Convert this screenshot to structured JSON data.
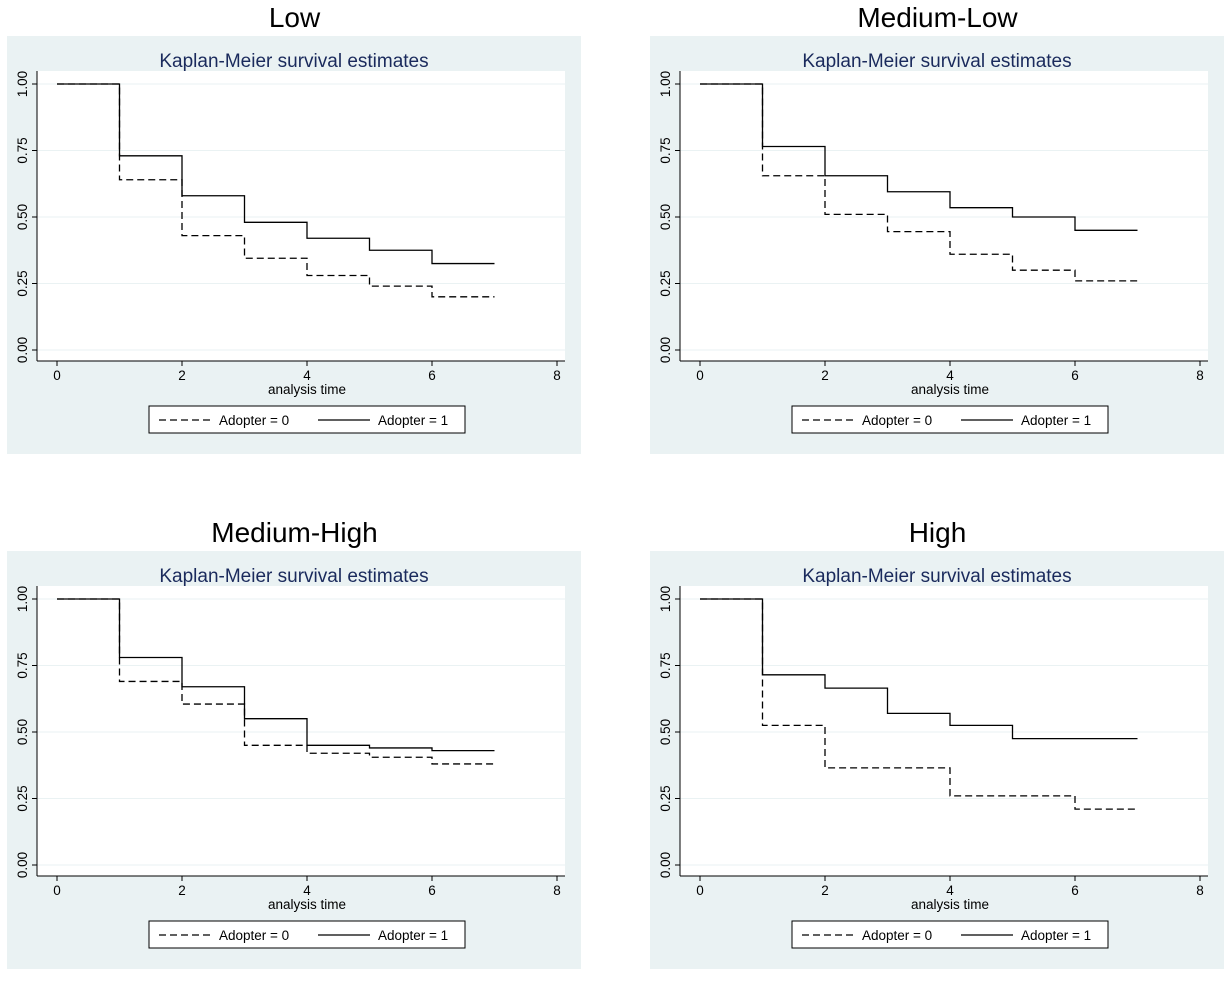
{
  "colors": {
    "outer_background": "#eaf2f3",
    "plot_background": "#ffffff",
    "title_color": "#1a2a5c",
    "gridline": "#eaf2f3",
    "line": "#000000"
  },
  "chart_data": [
    {
      "type": "line",
      "panel_title": "Low",
      "title": "Kaplan-Meier survival estimates",
      "xlabel": "analysis time",
      "ylabel": "",
      "xlim": [
        0,
        8
      ],
      "ylim": [
        0,
        1
      ],
      "xticks": [
        "0",
        "2",
        "4",
        "6",
        "8"
      ],
      "yticks": [
        "0.00",
        "0.25",
        "0.50",
        "0.75",
        "1.00"
      ],
      "grid": true,
      "legend_position": "bottom",
      "series": [
        {
          "name": "Adopter = 0",
          "style": "dashed",
          "step": true,
          "x": [
            0,
            1,
            2,
            3,
            4,
            5,
            6,
            7
          ],
          "y": [
            1.0,
            0.64,
            0.43,
            0.345,
            0.28,
            0.24,
            0.2,
            0.2
          ]
        },
        {
          "name": "Adopter = 1",
          "style": "solid",
          "step": true,
          "x": [
            0,
            1,
            2,
            3,
            4,
            5,
            6,
            7
          ],
          "y": [
            1.0,
            0.73,
            0.58,
            0.48,
            0.42,
            0.375,
            0.325,
            0.325
          ]
        }
      ]
    },
    {
      "type": "line",
      "panel_title": "Medium-Low",
      "title": "Kaplan-Meier survival estimates",
      "xlabel": "analysis time",
      "ylabel": "",
      "xlim": [
        0,
        8
      ],
      "ylim": [
        0,
        1
      ],
      "xticks": [
        "0",
        "2",
        "4",
        "6",
        "8"
      ],
      "yticks": [
        "0.00",
        "0.25",
        "0.50",
        "0.75",
        "1.00"
      ],
      "grid": true,
      "legend_position": "bottom",
      "series": [
        {
          "name": "Adopter = 0",
          "style": "dashed",
          "step": true,
          "x": [
            0,
            1,
            2,
            3,
            4,
            5,
            6,
            7
          ],
          "y": [
            1.0,
            0.655,
            0.51,
            0.445,
            0.36,
            0.3,
            0.26,
            0.26
          ]
        },
        {
          "name": "Adopter = 1",
          "style": "solid",
          "step": true,
          "x": [
            0,
            1,
            2,
            3,
            4,
            5,
            6,
            7
          ],
          "y": [
            1.0,
            0.765,
            0.655,
            0.595,
            0.535,
            0.5,
            0.45,
            0.45
          ]
        }
      ]
    },
    {
      "type": "line",
      "panel_title": "Medium-High",
      "title": "Kaplan-Meier survival estimates",
      "xlabel": "analysis time",
      "ylabel": "",
      "xlim": [
        0,
        8
      ],
      "ylim": [
        0,
        1
      ],
      "xticks": [
        "0",
        "2",
        "4",
        "6",
        "8"
      ],
      "yticks": [
        "0.00",
        "0.25",
        "0.50",
        "0.75",
        "1.00"
      ],
      "grid": true,
      "legend_position": "bottom",
      "series": [
        {
          "name": "Adopter = 0",
          "style": "dashed",
          "step": true,
          "x": [
            0,
            1,
            2,
            3,
            4,
            5,
            6,
            7
          ],
          "y": [
            1.0,
            0.69,
            0.605,
            0.45,
            0.42,
            0.405,
            0.38,
            0.38
          ]
        },
        {
          "name": "Adopter = 1",
          "style": "solid",
          "step": true,
          "x": [
            0,
            1,
            2,
            3,
            4,
            5,
            6,
            7
          ],
          "y": [
            1.0,
            0.78,
            0.67,
            0.55,
            0.45,
            0.44,
            0.43,
            0.43
          ]
        }
      ]
    },
    {
      "type": "line",
      "panel_title": "High",
      "title": "Kaplan-Meier survival estimates",
      "xlabel": "analysis time",
      "ylabel": "",
      "xlim": [
        0,
        8
      ],
      "ylim": [
        0,
        1
      ],
      "xticks": [
        "0",
        "2",
        "4",
        "6",
        "8"
      ],
      "yticks": [
        "0.00",
        "0.25",
        "0.50",
        "0.75",
        "1.00"
      ],
      "grid": true,
      "legend_position": "bottom",
      "series": [
        {
          "name": "Adopter = 0",
          "style": "dashed",
          "step": true,
          "x": [
            0,
            1,
            2,
            3,
            4,
            5,
            6,
            7
          ],
          "y": [
            1.0,
            0.525,
            0.365,
            0.365,
            0.26,
            0.26,
            0.21,
            0.21
          ]
        },
        {
          "name": "Adopter = 1",
          "style": "solid",
          "step": true,
          "x": [
            0,
            1,
            2,
            3,
            4,
            5,
            6,
            7
          ],
          "y": [
            1.0,
            0.715,
            0.665,
            0.57,
            0.525,
            0.475,
            0.475,
            0.475
          ]
        }
      ]
    }
  ]
}
